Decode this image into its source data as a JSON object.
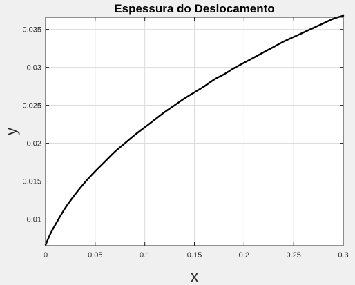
{
  "chart_data": {
    "type": "line",
    "title": "Espessura do Deslocamento",
    "xlabel": "x",
    "ylabel": "y",
    "xlim": [
      0,
      0.3
    ],
    "ylim": [
      0.0065,
      0.0366
    ],
    "grid": true,
    "legend": "none",
    "xticks": [
      0,
      0.05,
      0.1,
      0.15,
      0.2,
      0.25,
      0.3
    ],
    "xtick_labels": [
      "0",
      "0.05",
      "0.1",
      "0.15",
      "0.2",
      "0.25",
      "0.3"
    ],
    "yticks": [
      0.01,
      0.015,
      0.02,
      0.025,
      0.03,
      0.035
    ],
    "ytick_labels": [
      "0.01",
      "0.015",
      "0.02",
      "0.025",
      "0.03",
      "0.035"
    ],
    "series": [
      {
        "x": [
          0,
          0.005,
          0.01,
          0.02,
          0.03,
          0.04,
          0.05,
          0.06,
          0.07,
          0.08,
          0.09,
          0.1,
          0.11,
          0.12,
          0.13,
          0.14,
          0.15,
          0.16,
          0.17,
          0.18,
          0.19,
          0.2,
          0.21,
          0.22,
          0.23,
          0.24,
          0.25,
          0.26,
          0.27,
          0.28,
          0.29,
          0.3
        ],
        "y": [
          0.0066,
          0.0081,
          0.0093,
          0.0115,
          0.0133,
          0.0149,
          0.0163,
          0.0176,
          0.0189,
          0.02,
          0.0211,
          0.0221,
          0.0231,
          0.0241,
          0.025,
          0.0259,
          0.0267,
          0.0275,
          0.0284,
          0.0291,
          0.0299,
          0.0306,
          0.0313,
          0.032,
          0.0327,
          0.0334,
          0.034,
          0.0346,
          0.0352,
          0.0358,
          0.0364,
          0.0368
        ]
      }
    ],
    "colors": {
      "background": "#f0f0f0",
      "plot_area": "#ffffff",
      "line": "#000000",
      "grid": "#dcdcdc",
      "axis": "#262626"
    }
  }
}
